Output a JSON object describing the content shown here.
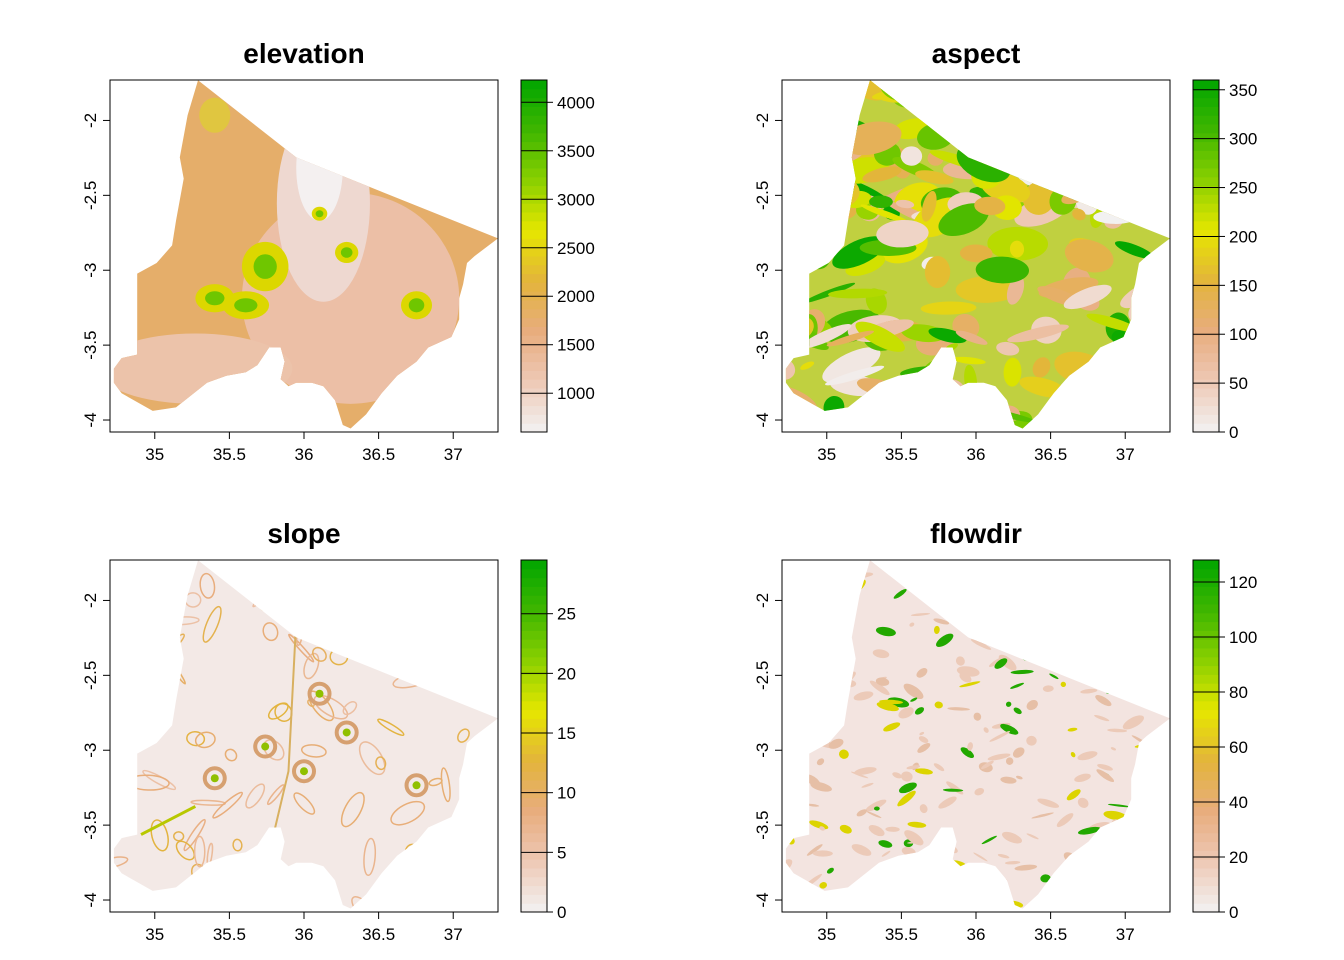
{
  "chart_data": [
    {
      "type": "heatmap",
      "title": "elevation",
      "xlabel": "",
      "ylabel": "",
      "xlim": [
        34.7,
        37.3
      ],
      "ylim": [
        -4.08,
        -1.73
      ],
      "x_ticks": [
        "35",
        "35.5",
        "36",
        "36.5",
        "37"
      ],
      "x_tick_values": [
        35,
        35.5,
        36,
        36.5,
        37
      ],
      "y_ticks": [
        "-2",
        "-2.5",
        "-3",
        "-3.5",
        "-4"
      ],
      "y_tick_values": [
        -2,
        -2.5,
        -3,
        -3.5,
        -4
      ],
      "legend": {
        "range": [
          600,
          4230
        ],
        "breaks": [
          1000,
          1500,
          2000,
          2500,
          3000,
          3500,
          4000
        ],
        "labels": [
          "1000",
          "1500",
          "2000",
          "2500",
          "3000",
          "3500",
          "4000"
        ]
      },
      "style": "elevation"
    },
    {
      "type": "heatmap",
      "title": "aspect",
      "xlabel": "",
      "ylabel": "",
      "xlim": [
        34.7,
        37.3
      ],
      "ylim": [
        -4.08,
        -1.73
      ],
      "x_ticks": [
        "35",
        "35.5",
        "36",
        "36.5",
        "37"
      ],
      "x_tick_values": [
        35,
        35.5,
        36,
        36.5,
        37
      ],
      "y_ticks": [
        "-2",
        "-2.5",
        "-3",
        "-3.5",
        "-4"
      ],
      "y_tick_values": [
        -2,
        -2.5,
        -3,
        -3.5,
        -4
      ],
      "legend": {
        "range": [
          0,
          360
        ],
        "breaks": [
          0,
          50,
          100,
          150,
          200,
          250,
          300,
          350
        ],
        "labels": [
          "0",
          "50",
          "100",
          "150",
          "200",
          "250",
          "300",
          "350"
        ]
      },
      "style": "aspect"
    },
    {
      "type": "heatmap",
      "title": "slope",
      "xlabel": "",
      "ylabel": "",
      "xlim": [
        34.7,
        37.3
      ],
      "ylim": [
        -4.08,
        -1.73
      ],
      "x_ticks": [
        "35",
        "35.5",
        "36",
        "36.5",
        "37"
      ],
      "x_tick_values": [
        35,
        35.5,
        36,
        36.5,
        37
      ],
      "y_ticks": [
        "-2",
        "-2.5",
        "-3",
        "-3.5",
        "-4"
      ],
      "y_tick_values": [
        -2,
        -2.5,
        -3,
        -3.5,
        -4
      ],
      "legend": {
        "range": [
          0,
          29.5
        ],
        "breaks": [
          0,
          5,
          10,
          15,
          20,
          25
        ],
        "labels": [
          "0",
          "5",
          "10",
          "15",
          "20",
          "25"
        ]
      },
      "style": "slope"
    },
    {
      "type": "heatmap",
      "title": "flowdir",
      "xlabel": "",
      "ylabel": "",
      "xlim": [
        34.7,
        37.3
      ],
      "ylim": [
        -4.08,
        -1.73
      ],
      "x_ticks": [
        "35",
        "35.5",
        "36",
        "36.5",
        "37"
      ],
      "x_tick_values": [
        35,
        35.5,
        36,
        36.5,
        37
      ],
      "y_ticks": [
        "-2",
        "-2.5",
        "-3",
        "-3.5",
        "-4"
      ],
      "y_tick_values": [
        -2,
        -2.5,
        -3,
        -3.5,
        -4
      ],
      "legend": {
        "range": [
          0,
          128
        ],
        "breaks": [
          0,
          20,
          40,
          60,
          80,
          100,
          120
        ],
        "labels": [
          "0",
          "20",
          "40",
          "60",
          "80",
          "100",
          "120"
        ]
      },
      "style": "flowdir"
    }
  ],
  "colors": {
    "ramp": [
      "#f2f2f2",
      "#eec9b6",
      "#e8ad7e",
      "#e3b43c",
      "#e6e600",
      "#8bd000",
      "#3fb600",
      "#00a600"
    ],
    "frame": "#000000",
    "no_data": "#ffffff"
  }
}
